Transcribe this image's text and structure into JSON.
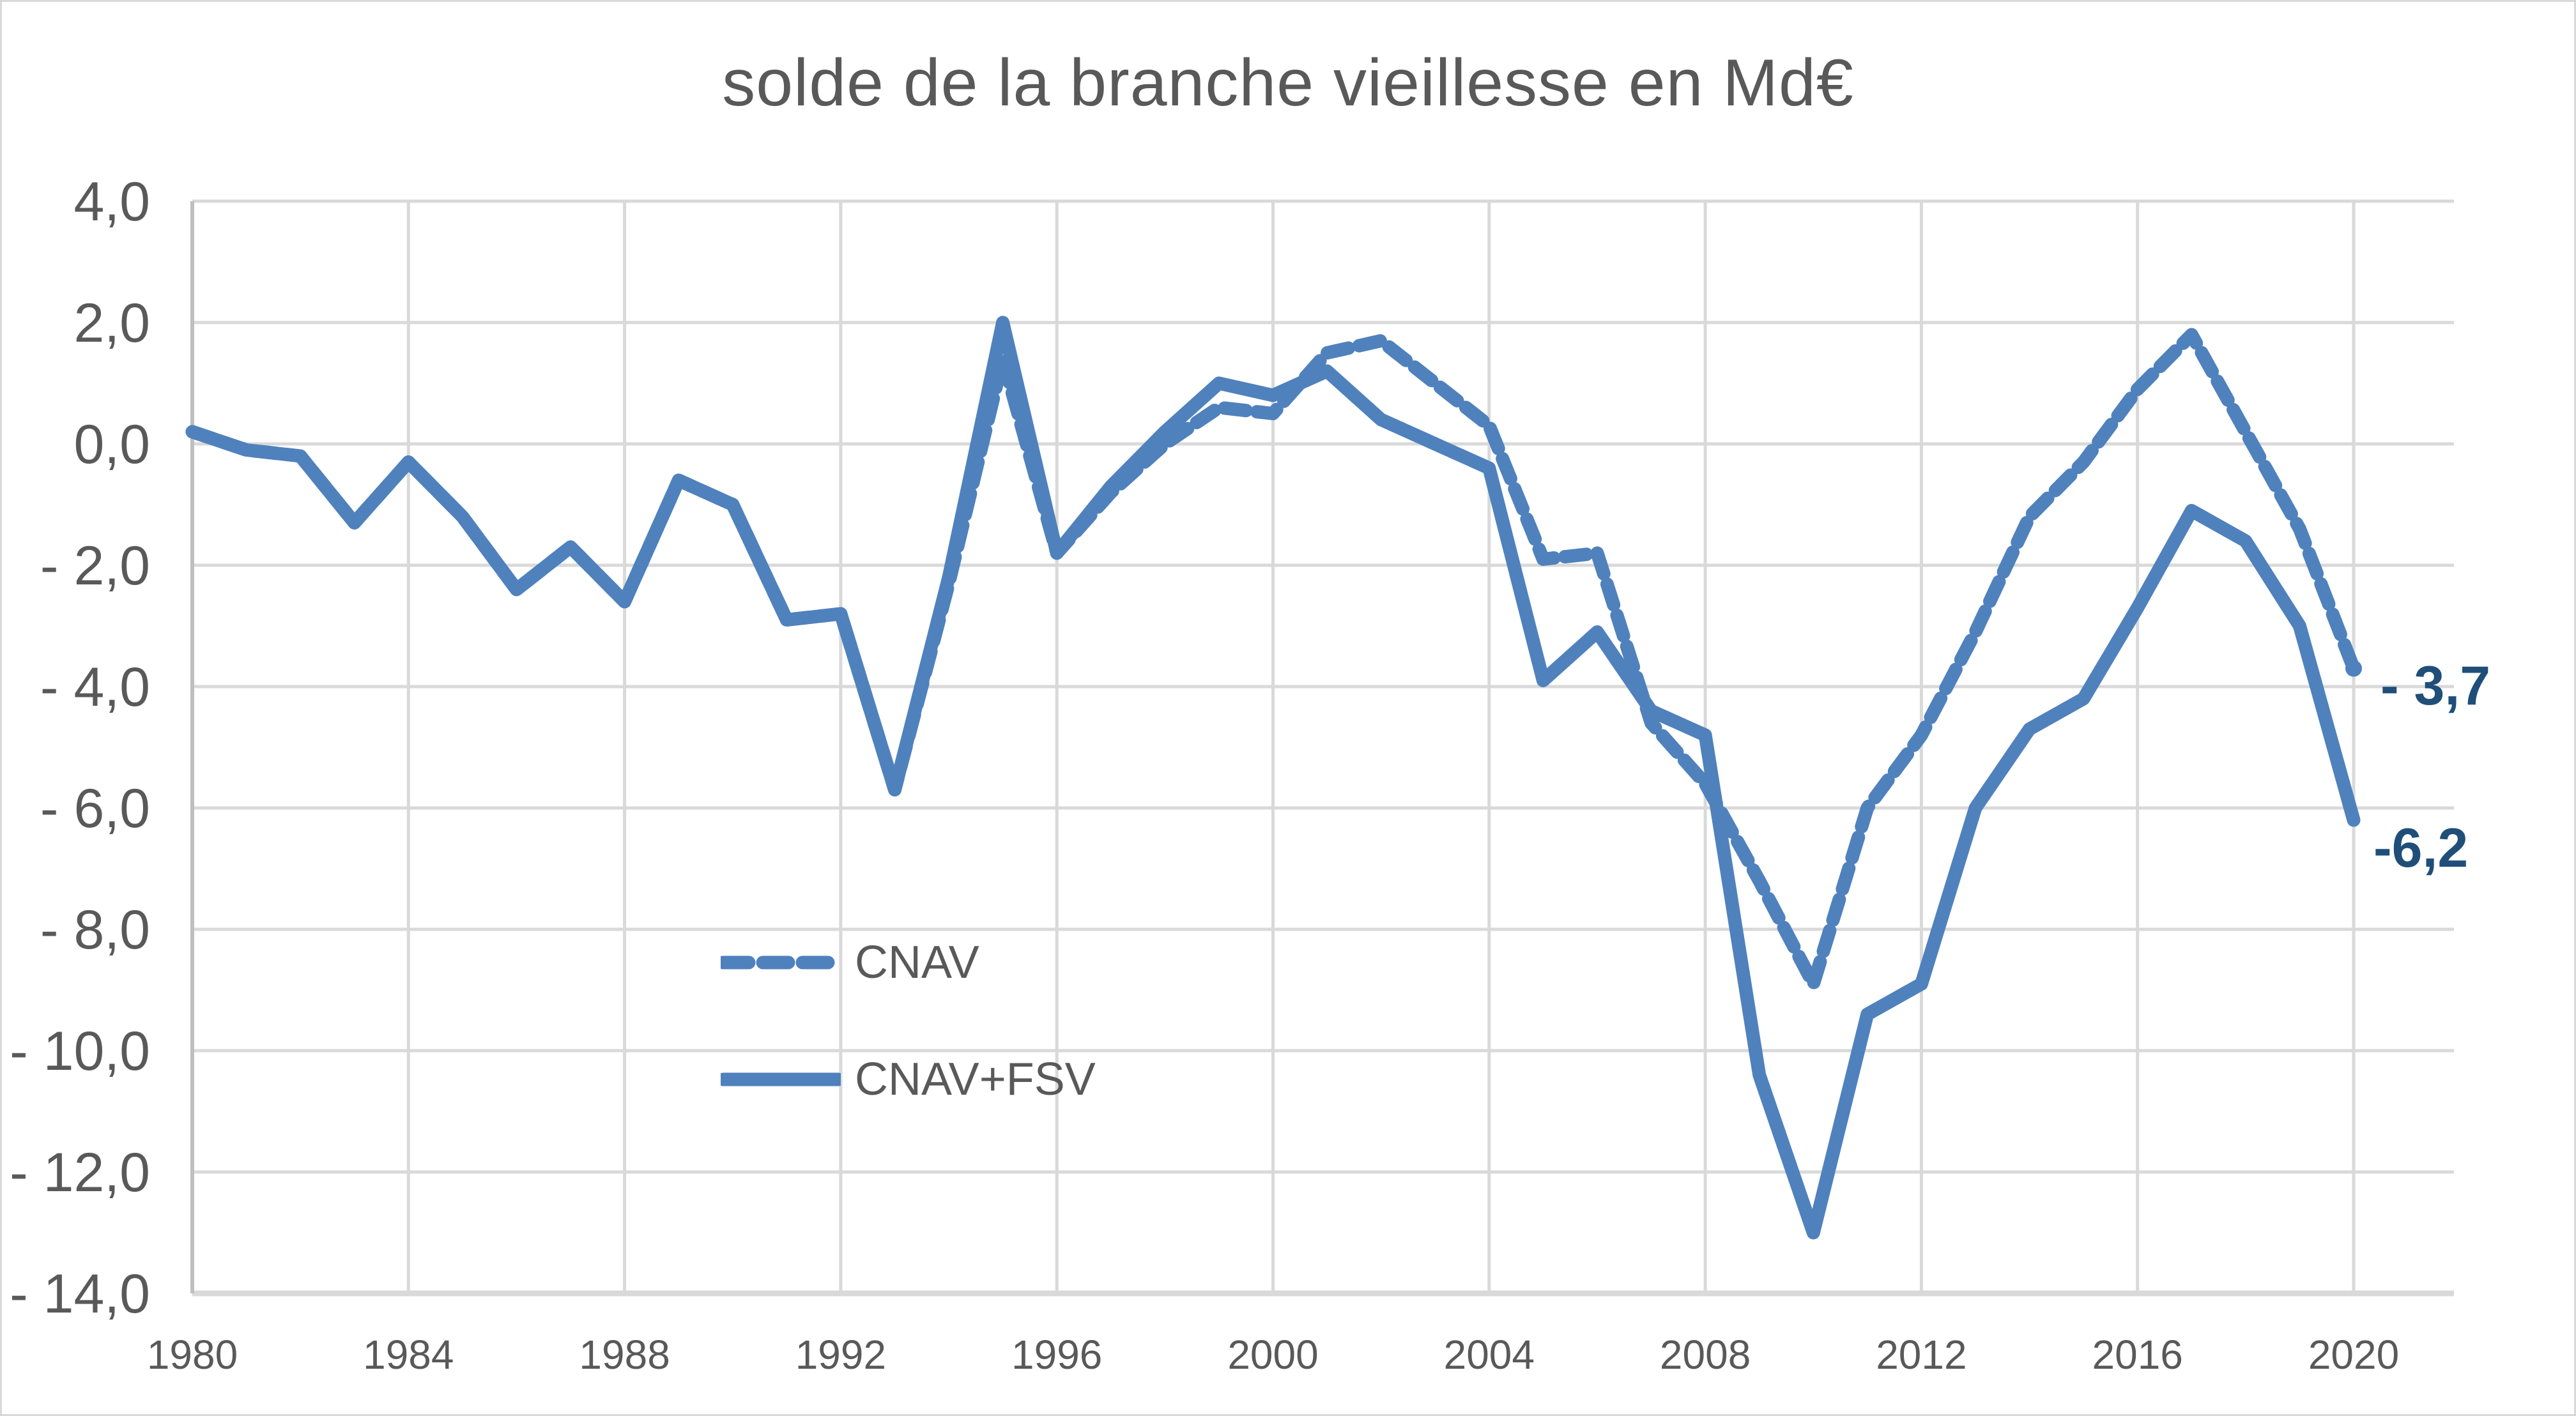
{
  "title": "solde de la branche vieillesse en Md€",
  "colors": {
    "line_blue": "#4F81BD",
    "gridline": "#D9D9D9",
    "axis_line": "#BFBFBF",
    "text_gray": "#595959",
    "data_label_navy": "#1F4E79",
    "background": "#FFFFFF"
  },
  "legend": {
    "items": [
      {
        "label": "CNAV",
        "style": "dashed"
      },
      {
        "label": "CNAV+FSV",
        "style": "solid"
      }
    ]
  },
  "end_labels": {
    "cnav": "- 3,7",
    "cnav_fsv": "-6,2"
  },
  "chart_data": {
    "type": "line",
    "title": "solde de la branche vieillesse en Md€",
    "xlabel": "",
    "ylabel": "",
    "x": [
      1980,
      1981,
      1982,
      1983,
      1984,
      1985,
      1986,
      1987,
      1988,
      1989,
      1990,
      1991,
      1992,
      1993,
      1994,
      1995,
      1996,
      1997,
      1998,
      1999,
      2000,
      2001,
      2002,
      2003,
      2004,
      2005,
      2006,
      2007,
      2008,
      2009,
      2010,
      2011,
      2012,
      2013,
      2014,
      2015,
      2016,
      2017,
      2018,
      2019,
      2020
    ],
    "x_tick_labels": [
      "1980",
      "1984",
      "1988",
      "1992",
      "1996",
      "2000",
      "2004",
      "2008",
      "2012",
      "2016",
      "2020"
    ],
    "x_tick_years": [
      1980,
      1984,
      1988,
      1992,
      1996,
      2000,
      2004,
      2008,
      2012,
      2016,
      2020
    ],
    "y_tick_labels": [
      "4,0",
      "2,0",
      "0,0",
      "- 2,0",
      "- 4,0",
      "- 6,0",
      "- 8,0",
      "- 10,0",
      "- 12,0",
      "- 14,0"
    ],
    "y_tick_values": [
      4,
      2,
      0,
      -2,
      -4,
      -6,
      -8,
      -10,
      -12,
      -14
    ],
    "ylim": [
      -14,
      4
    ],
    "xlim": [
      1980,
      2020
    ],
    "grid": true,
    "legend_position": "inside-center-left",
    "series": [
      {
        "name": "CNAV",
        "style": "dashed",
        "values": [
          0.2,
          -0.1,
          -0.2,
          -1.3,
          -0.3,
          -1.2,
          -2.4,
          -1.7,
          -2.6,
          -0.6,
          -1.0,
          -2.9,
          -2.8,
          -5.7,
          -2.3,
          1.4,
          -1.8,
          -0.8,
          0.0,
          0.6,
          0.5,
          1.5,
          1.7,
          1.0,
          0.3,
          -1.9,
          -1.8,
          -4.6,
          -5.6,
          -7.2,
          -8.9,
          -6.0,
          -4.8,
          -3.1,
          -1.2,
          -0.3,
          0.9,
          1.8,
          0.2,
          -1.4,
          -3.7
        ]
      },
      {
        "name": "CNAV+FSV",
        "style": "solid",
        "values": [
          0.2,
          -0.1,
          -0.2,
          -1.3,
          -0.3,
          -1.2,
          -2.4,
          -1.7,
          -2.6,
          -0.6,
          -1.0,
          -2.9,
          -2.8,
          -5.7,
          -2.2,
          2.0,
          -1.8,
          -0.7,
          0.2,
          1.0,
          0.8,
          1.2,
          0.4,
          0.0,
          -0.4,
          -3.9,
          -3.1,
          -4.4,
          -4.8,
          -10.4,
          -13.0,
          -9.4,
          -8.9,
          -6.0,
          -4.7,
          -4.2,
          -2.7,
          -1.1,
          -1.6,
          -3.0,
          -6.2
        ]
      }
    ],
    "annotations": [
      {
        "text": "- 3,7",
        "series": "CNAV",
        "year": 2020,
        "value": -3.7
      },
      {
        "text": "-6,2",
        "series": "CNAV+FSV",
        "year": 2020,
        "value": -6.2
      }
    ]
  }
}
